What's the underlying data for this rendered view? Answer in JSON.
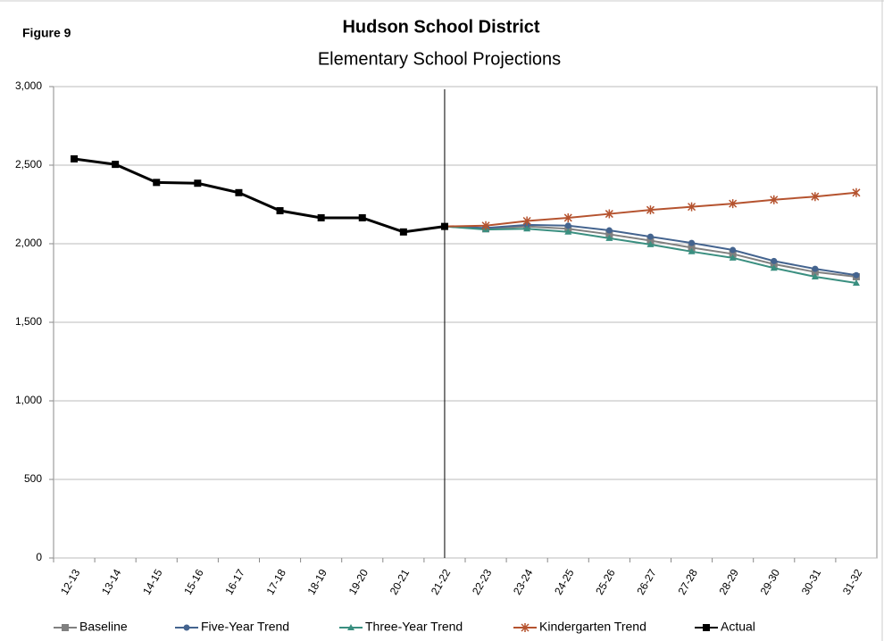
{
  "chart_data": {
    "type": "line",
    "figure_label": "Figure 9",
    "title": "Hudson School District",
    "subtitle": "Elementary School Projections",
    "categories": [
      "12-13",
      "13-14",
      "14-15",
      "15-16",
      "16-17",
      "17-18",
      "18-19",
      "19-20",
      "20-21",
      "21-22",
      "22-23",
      "23-24",
      "24-25",
      "25-26",
      "26-27",
      "27-28",
      "28-29",
      "29-30",
      "30-31",
      "31-32"
    ],
    "ylim": [
      0,
      3000
    ],
    "yticks": [
      0,
      500,
      {
        "value": 1000,
        "label": "1,000"
      },
      {
        "value": 1500,
        "label": "1,500"
      },
      {
        "value": 2000,
        "label": "2,000"
      },
      {
        "value": 2500,
        "label": "2,500"
      },
      {
        "value": 3000,
        "label": "3,000"
      }
    ],
    "grid": true,
    "legend": "bottom",
    "series": [
      {
        "name": "Baseline",
        "color": "#808080",
        "marker": "square",
        "values": [
          null,
          null,
          null,
          null,
          null,
          null,
          null,
          null,
          null,
          2110,
          2095,
          2110,
          2095,
          2060,
          2020,
          1975,
          1935,
          1870,
          1820,
          1790
        ]
      },
      {
        "name": "Five-Year Trend",
        "color": "#44648f",
        "marker": "circle",
        "values": [
          null,
          null,
          null,
          null,
          null,
          null,
          null,
          null,
          null,
          2110,
          2100,
          2120,
          2115,
          2085,
          2045,
          2005,
          1960,
          1890,
          1840,
          1800
        ]
      },
      {
        "name": "Three-Year Trend",
        "color": "#3a8f80",
        "marker": "triangle",
        "values": [
          null,
          null,
          null,
          null,
          null,
          null,
          null,
          null,
          null,
          2110,
          2090,
          2095,
          2075,
          2035,
          1995,
          1950,
          1910,
          1845,
          1790,
          1750
        ]
      },
      {
        "name": "Kindergarten Trend",
        "color": "#b5532f",
        "marker": "asterisk",
        "values": [
          null,
          null,
          null,
          null,
          null,
          null,
          null,
          null,
          null,
          2110,
          2115,
          2145,
          2165,
          2190,
          2215,
          2235,
          2255,
          2280,
          2300,
          2325
        ]
      },
      {
        "name": "Actual",
        "color": "#000000",
        "marker": "square",
        "values": [
          2540,
          2505,
          2390,
          2385,
          2325,
          2210,
          2165,
          2165,
          2075,
          2110,
          null,
          null,
          null,
          null,
          null,
          null,
          null,
          null,
          null,
          null
        ]
      }
    ]
  }
}
